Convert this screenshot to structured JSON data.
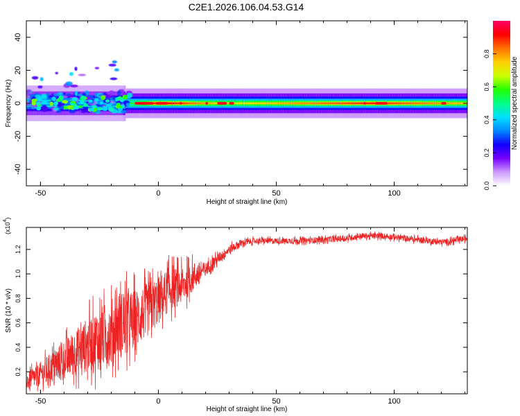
{
  "title": "C2E1.2026.106.04.53.G14",
  "chart_data": [
    {
      "type": "heatmap",
      "xlabel": "Height of straight line (km)",
      "ylabel": "Frequency (Hz)",
      "xlim": [
        -56,
        131
      ],
      "ylim": [
        -50,
        50
      ],
      "x_ticks": [
        "-50",
        "0",
        "50",
        "100"
      ],
      "y_ticks": [
        "-40",
        "-20",
        "0",
        "20",
        "40"
      ],
      "colorbar": {
        "label": "Normalized spectral amplitude",
        "range": [
          0,
          1
        ],
        "ticks": [
          "0.0",
          "0.2",
          "0.4",
          "0.6",
          "0.8"
        ],
        "colors": [
          "#ffffff",
          "#cc99ff",
          "#7700ff",
          "#1100ff",
          "#0088ff",
          "#00e0ff",
          "#00ff88",
          "#22ff00",
          "#ccff00",
          "#ffd000",
          "#ff7000",
          "#ff0000",
          "#ff0066"
        ]
      },
      "ridge": {
        "freq_hz": [
          0,
          0,
          0,
          0,
          0,
          0
        ],
        "x_km": [
          -56,
          -15,
          0,
          30,
          90,
          131
        ],
        "peak_amplitude": [
          0.5,
          0.45,
          0.95,
          0.7,
          0.9,
          0.75
        ]
      },
      "scatter_region": {
        "x_km": [
          -56,
          -12
        ],
        "freq_hz": [
          -6,
          32
        ]
      }
    },
    {
      "type": "line",
      "xlabel": "Height of straight line (km)",
      "ylabel": "SNR (10 * v/v)",
      "y_multiplier": "(x10",
      "y_multiplier_exp": "4",
      "y_multiplier_close": ")",
      "xlim": [
        -56,
        131
      ],
      "ylim": [
        0.02,
        1.38
      ],
      "x_ticks": [
        "-50",
        "0",
        "50",
        "100"
      ],
      "y_ticks": [
        "0.2",
        "0.4",
        "0.6",
        "0.8",
        "1.0",
        "1.2"
      ],
      "series_color": "#ee2222",
      "trend_x": [
        -56,
        -50,
        -45,
        -40,
        -35,
        -30,
        -25,
        -20,
        -18,
        -15,
        -10,
        -5,
        0,
        5,
        10,
        15,
        20,
        25,
        30,
        35,
        40,
        50,
        60,
        70,
        80,
        85,
        90,
        95,
        100,
        105,
        110,
        115,
        120,
        125,
        131
      ],
      "trend_y": [
        0.12,
        0.18,
        0.24,
        0.3,
        0.36,
        0.42,
        0.47,
        0.52,
        0.6,
        0.58,
        0.62,
        0.7,
        0.78,
        0.88,
        0.9,
        0.98,
        1.04,
        1.12,
        1.2,
        1.25,
        1.27,
        1.27,
        1.27,
        1.28,
        1.29,
        1.31,
        1.31,
        1.31,
        1.3,
        1.29,
        1.28,
        1.27,
        1.26,
        1.27,
        1.29
      ],
      "noise_x": [
        -56,
        -40,
        -25,
        -15,
        -5,
        5,
        15,
        20,
        30,
        40,
        131
      ],
      "noise_amp": [
        0.08,
        0.2,
        0.32,
        0.35,
        0.28,
        0.22,
        0.15,
        0.07,
        0.045,
        0.03,
        0.03
      ]
    }
  ]
}
